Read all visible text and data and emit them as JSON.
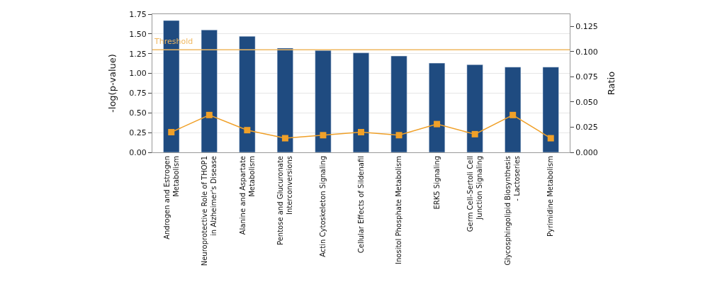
{
  "chart_data": {
    "type": "bar",
    "ylabel": "-log(p-value)",
    "y2label": "Ratio",
    "categories": [
      "Androgen and Estrogen Metabolism",
      "Neuroprotective Role of THOP1 in Alzheimer's Disease",
      "Alanine and Aspartate Metabolism",
      "Pentose and Glucuronate Interconversions",
      "Actin Cytoskeleton Signaling",
      "Cellular Effects of Sildenafil",
      "Inositol Phosphate Metabolism",
      "ERK5 Signaling",
      "Germ Cell-Sertoli Cell Junction Signaling",
      "Glycosphingolipid Biosynthesis - Lactoseries",
      "Pyrimidine Metabolism"
    ],
    "series": [
      {
        "color": "#1f4b80",
        "values": [
          1.67,
          1.55,
          1.47,
          1.32,
          1.29,
          1.26,
          1.22,
          1.13,
          1.11,
          1.08,
          1.08
        ]
      },
      {
        "type": "line",
        "axis": "y2",
        "color": "#f0a028",
        "marker": "square",
        "values": [
          0.02,
          0.037,
          0.022,
          0.014,
          0.017,
          0.02,
          0.017,
          0.028,
          0.018,
          0.037,
          0.014
        ]
      }
    ],
    "ylim": [
      0,
      1.75
    ],
    "yticks": [
      {
        "value": 0,
        "label": "0.00"
      },
      {
        "value": 0.25,
        "label": "0.25"
      },
      {
        "value": 0.5,
        "label": "0.50"
      },
      {
        "value": 0.75,
        "label": "0.75"
      },
      {
        "value": 1,
        "label": "1.00"
      },
      {
        "value": 1.25,
        "label": "1.25"
      },
      {
        "value": 1.5,
        "label": "1.50"
      },
      {
        "value": 1.75,
        "label": "1.75"
      }
    ],
    "y2lim": [
      0,
      0.137
    ],
    "y2ticks": [
      {
        "value": 0,
        "label": "0.000"
      },
      {
        "value": 0.025,
        "label": "0.025"
      },
      {
        "value": 0.05,
        "label": "0.050"
      },
      {
        "value": 0.075,
        "label": "0.075"
      },
      {
        "value": 0.1,
        "label": "0.100"
      },
      {
        "value": 0.125,
        "label": "0.125"
      }
    ],
    "ref_lines": [
      {
        "axis": "y",
        "value": 1.3,
        "label": "Threshold",
        "color": "#f0b860"
      }
    ],
    "grid": "y"
  }
}
